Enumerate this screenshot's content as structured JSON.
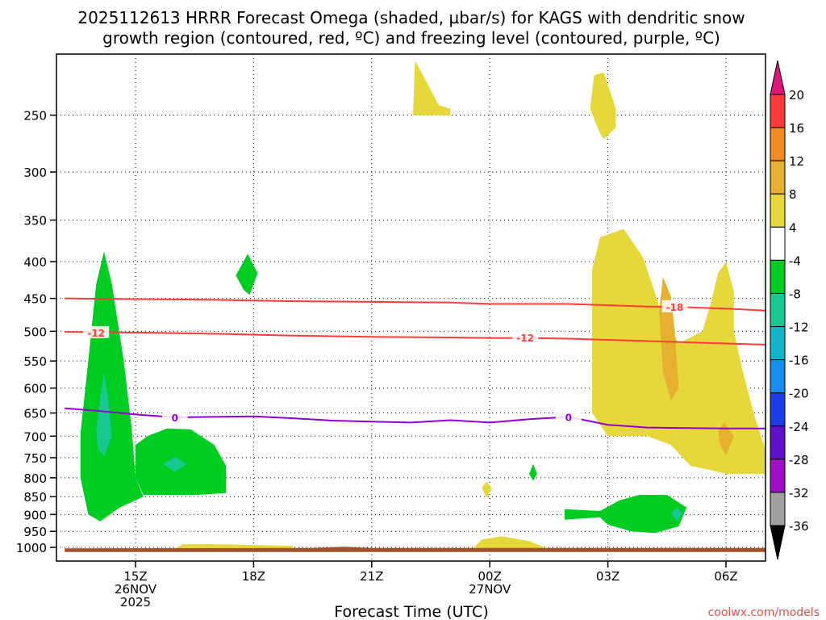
{
  "colors": {
    "frame": "#000000",
    "freezing_level": "#9400d3",
    "dgz": "#ff3b3b",
    "credit": "#d9534f",
    "ground": "#a0522d"
  },
  "chart_data": {
    "type": "contour-cross-section",
    "title_lines": [
      "2025112613 HRRR Forecast Omega (shaded, µbar/s) for KAGS with dendritic snow",
      "growth region (contoured, red, ºC) and freezing level (contoured, purple, ºC)"
    ],
    "xlabel": "Forecast Time (UTC)",
    "credit": "coolwx.com/models",
    "x_hours_range": [
      13.2,
      31.0
    ],
    "y_pressure_range": [
      1015,
      200
    ],
    "y_ticks": [
      250,
      300,
      350,
      400,
      450,
      500,
      550,
      600,
      650,
      700,
      750,
      800,
      850,
      900,
      950,
      1000
    ],
    "x_ticks": [
      {
        "hour": 15,
        "lines": [
          "15Z",
          "26NOV",
          "2025"
        ]
      },
      {
        "hour": 18,
        "lines": [
          "18Z"
        ]
      },
      {
        "hour": 21,
        "lines": [
          "21Z"
        ]
      },
      {
        "hour": 24,
        "lines": [
          "00Z",
          "27NOV"
        ]
      },
      {
        "hour": 27,
        "lines": [
          "03Z"
        ]
      },
      {
        "hour": 30,
        "lines": [
          "06Z"
        ]
      }
    ],
    "colorbar": {
      "levels": [
        20,
        16,
        12,
        8,
        4,
        -4,
        -8,
        -12,
        -16,
        -20,
        -24,
        -28,
        -32,
        -36
      ],
      "colors": [
        "#ff3b3b",
        "#f08a24",
        "#e6b030",
        "#e6d83a",
        "#ffffff",
        "#00cc22",
        "#19c890",
        "#11b4c8",
        "#1a8cf0",
        "#1a3ce6",
        "#6010c8",
        "#a010c8",
        "#a0a0a0"
      ],
      "top_arrow": "#e0157a",
      "bottom_arrow": "#000000"
    },
    "omega_regions": [
      {
        "color": "#00cc22",
        "points": [
          [
            13.6,
            695
          ],
          [
            13.8,
            550
          ],
          [
            14.0,
            430
          ],
          [
            14.2,
            387
          ],
          [
            14.4,
            430
          ],
          [
            14.7,
            550
          ],
          [
            14.9,
            680
          ],
          [
            15.0,
            800
          ],
          [
            15.2,
            850
          ],
          [
            14.6,
            880
          ],
          [
            14.1,
            920
          ],
          [
            13.8,
            900
          ],
          [
            13.6,
            800
          ]
        ]
      },
      {
        "color": "#19c890",
        "points": [
          [
            14.0,
            690
          ],
          [
            14.1,
            620
          ],
          [
            14.2,
            570
          ],
          [
            14.3,
            620
          ],
          [
            14.4,
            700
          ],
          [
            14.2,
            745
          ],
          [
            14.05,
            730
          ]
        ]
      },
      {
        "color": "#00cc22",
        "points": [
          [
            15.0,
            720
          ],
          [
            15.3,
            700
          ],
          [
            15.8,
            683
          ],
          [
            16.4,
            685
          ],
          [
            17.0,
            720
          ],
          [
            17.3,
            770
          ],
          [
            17.3,
            840
          ],
          [
            16.6,
            845
          ],
          [
            15.8,
            845
          ],
          [
            15.2,
            845
          ],
          [
            15.0,
            800
          ]
        ]
      },
      {
        "color": "#19c890",
        "points": [
          [
            15.7,
            765
          ],
          [
            16.0,
            748
          ],
          [
            16.3,
            765
          ],
          [
            16.0,
            785
          ]
        ]
      },
      {
        "color": "#00cc22",
        "points": [
          [
            17.55,
            418
          ],
          [
            17.85,
            390
          ],
          [
            18.1,
            415
          ],
          [
            17.9,
            445
          ],
          [
            17.75,
            438
          ]
        ]
      },
      {
        "color": "#e6d83a",
        "points": [
          [
            22.05,
            250
          ],
          [
            22.1,
            210
          ],
          [
            22.4,
            225
          ],
          [
            22.7,
            242
          ],
          [
            23.0,
            245
          ],
          [
            23.0,
            250
          ]
        ]
      },
      {
        "color": "#e6d83a",
        "points": [
          [
            26.55,
            245
          ],
          [
            26.65,
            220
          ],
          [
            26.9,
            218
          ],
          [
            27.2,
            245
          ],
          [
            27.2,
            260
          ],
          [
            26.9,
            270
          ],
          [
            26.8,
            265
          ]
        ]
      },
      {
        "color": "#e6d83a",
        "points": [
          [
            26.6,
            410
          ],
          [
            26.8,
            370
          ],
          [
            27.4,
            360
          ],
          [
            27.9,
            395
          ],
          [
            28.3,
            460
          ],
          [
            28.8,
            520
          ],
          [
            29.4,
            500
          ],
          [
            29.6,
            460
          ],
          [
            29.8,
            415
          ],
          [
            30.0,
            400
          ],
          [
            30.2,
            440
          ],
          [
            30.2,
            500
          ],
          [
            30.4,
            560
          ],
          [
            30.7,
            650
          ],
          [
            31.0,
            730
          ],
          [
            31.0,
            790
          ],
          [
            30.5,
            790
          ],
          [
            30.0,
            790
          ],
          [
            29.6,
            780
          ],
          [
            29.1,
            770
          ],
          [
            28.6,
            720
          ],
          [
            28.0,
            700
          ],
          [
            27.5,
            700
          ],
          [
            27.0,
            700
          ],
          [
            26.6,
            650
          ],
          [
            26.6,
            550
          ]
        ]
      },
      {
        "color": "#e6b030",
        "points": [
          [
            28.4,
            420
          ],
          [
            28.6,
            447
          ],
          [
            28.7,
            500
          ],
          [
            28.8,
            600
          ],
          [
            28.6,
            625
          ],
          [
            28.4,
            570
          ],
          [
            28.3,
            470
          ]
        ]
      },
      {
        "color": "#e6b030",
        "points": [
          [
            29.8,
            690
          ],
          [
            29.95,
            670
          ],
          [
            30.2,
            700
          ],
          [
            30.0,
            745
          ],
          [
            29.85,
            720
          ]
        ]
      },
      {
        "color": "#e6d83a",
        "points": [
          [
            23.8,
            825
          ],
          [
            23.92,
            810
          ],
          [
            24.05,
            828
          ],
          [
            23.92,
            855
          ]
        ]
      },
      {
        "color": "#00cc22",
        "points": [
          [
            25.0,
            790
          ],
          [
            25.1,
            765
          ],
          [
            25.2,
            790
          ],
          [
            25.1,
            808
          ]
        ]
      },
      {
        "color": "#00cc22",
        "points": [
          [
            25.9,
            885
          ],
          [
            26.8,
            890
          ],
          [
            27.3,
            860
          ],
          [
            27.8,
            845
          ],
          [
            28.5,
            845
          ],
          [
            29.0,
            880
          ],
          [
            28.8,
            935
          ],
          [
            28.2,
            955
          ],
          [
            27.6,
            950
          ],
          [
            27.0,
            930
          ],
          [
            26.8,
            908
          ],
          [
            25.9,
            915
          ]
        ]
      },
      {
        "color": "#19c890",
        "points": [
          [
            28.6,
            897
          ],
          [
            28.75,
            880
          ],
          [
            28.9,
            897
          ],
          [
            28.75,
            920
          ]
        ]
      },
      {
        "color": "#e6d83a",
        "points": [
          [
            23.6,
            1000
          ],
          [
            23.8,
            975
          ],
          [
            24.3,
            965
          ],
          [
            25.0,
            980
          ],
          [
            25.4,
            1000
          ],
          [
            25.0,
            1010
          ],
          [
            24.0,
            1010
          ]
        ]
      },
      {
        "color": "#e6d83a",
        "points": [
          [
            16.0,
            1005
          ],
          [
            16.2,
            990
          ],
          [
            17.0,
            990
          ],
          [
            19.0,
            995
          ],
          [
            19.0,
            1008
          ],
          [
            16.0,
            1008
          ]
        ]
      },
      {
        "color": "#a0522d",
        "points": [
          [
            13.2,
            1003
          ],
          [
            19.5,
            1002
          ],
          [
            20.3,
            998
          ],
          [
            21.0,
            1002
          ],
          [
            31.0,
            1002
          ],
          [
            31.0,
            1015
          ],
          [
            13.2,
            1015
          ]
        ]
      }
    ],
    "dgz_contours": [
      {
        "value": "-18",
        "points": [
          [
            13.2,
            450
          ],
          [
            15.0,
            451
          ],
          [
            17.0,
            452
          ],
          [
            19.0,
            454
          ],
          [
            21.0,
            455
          ],
          [
            23.0,
            456
          ],
          [
            24.0,
            458
          ],
          [
            26.0,
            458
          ],
          [
            27.0,
            460
          ],
          [
            28.0,
            462
          ],
          [
            29.0,
            463
          ],
          [
            30.0,
            465
          ],
          [
            31.0,
            468
          ]
        ],
        "label_at": [
          28.7,
          462
        ]
      },
      {
        "value": "-12",
        "points": [
          [
            13.2,
            501
          ],
          [
            15.0,
            502
          ],
          [
            17.0,
            504
          ],
          [
            19.0,
            507
          ],
          [
            21.0,
            509
          ],
          [
            23.0,
            510
          ],
          [
            24.0,
            511
          ],
          [
            25.0,
            511
          ],
          [
            26.0,
            512
          ],
          [
            27.0,
            514
          ],
          [
            28.0,
            516
          ],
          [
            29.0,
            518
          ],
          [
            30.0,
            520
          ],
          [
            31.0,
            522
          ]
        ],
        "label_at": [
          24.9,
          510
        ]
      },
      {
        "value": "-12",
        "points": [],
        "label_at": [
          14.0,
          502
        ]
      }
    ],
    "freezing_level": {
      "value": "0",
      "points": [
        [
          13.2,
          640
        ],
        [
          14.0,
          645
        ],
        [
          15.0,
          653
        ],
        [
          16.0,
          659
        ],
        [
          17.0,
          658
        ],
        [
          18.0,
          657
        ],
        [
          19.0,
          661
        ],
        [
          20.0,
          666
        ],
        [
          21.0,
          668
        ],
        [
          22.0,
          670
        ],
        [
          23.0,
          665
        ],
        [
          24.0,
          670
        ],
        [
          25.0,
          663
        ],
        [
          26.0,
          658
        ],
        [
          27.0,
          675
        ],
        [
          28.0,
          681
        ],
        [
          29.0,
          682
        ],
        [
          30.0,
          683
        ],
        [
          31.0,
          683
        ]
      ],
      "label_at": [
        [
          16.0,
          659
        ],
        [
          26.0,
          658
        ]
      ]
    }
  }
}
